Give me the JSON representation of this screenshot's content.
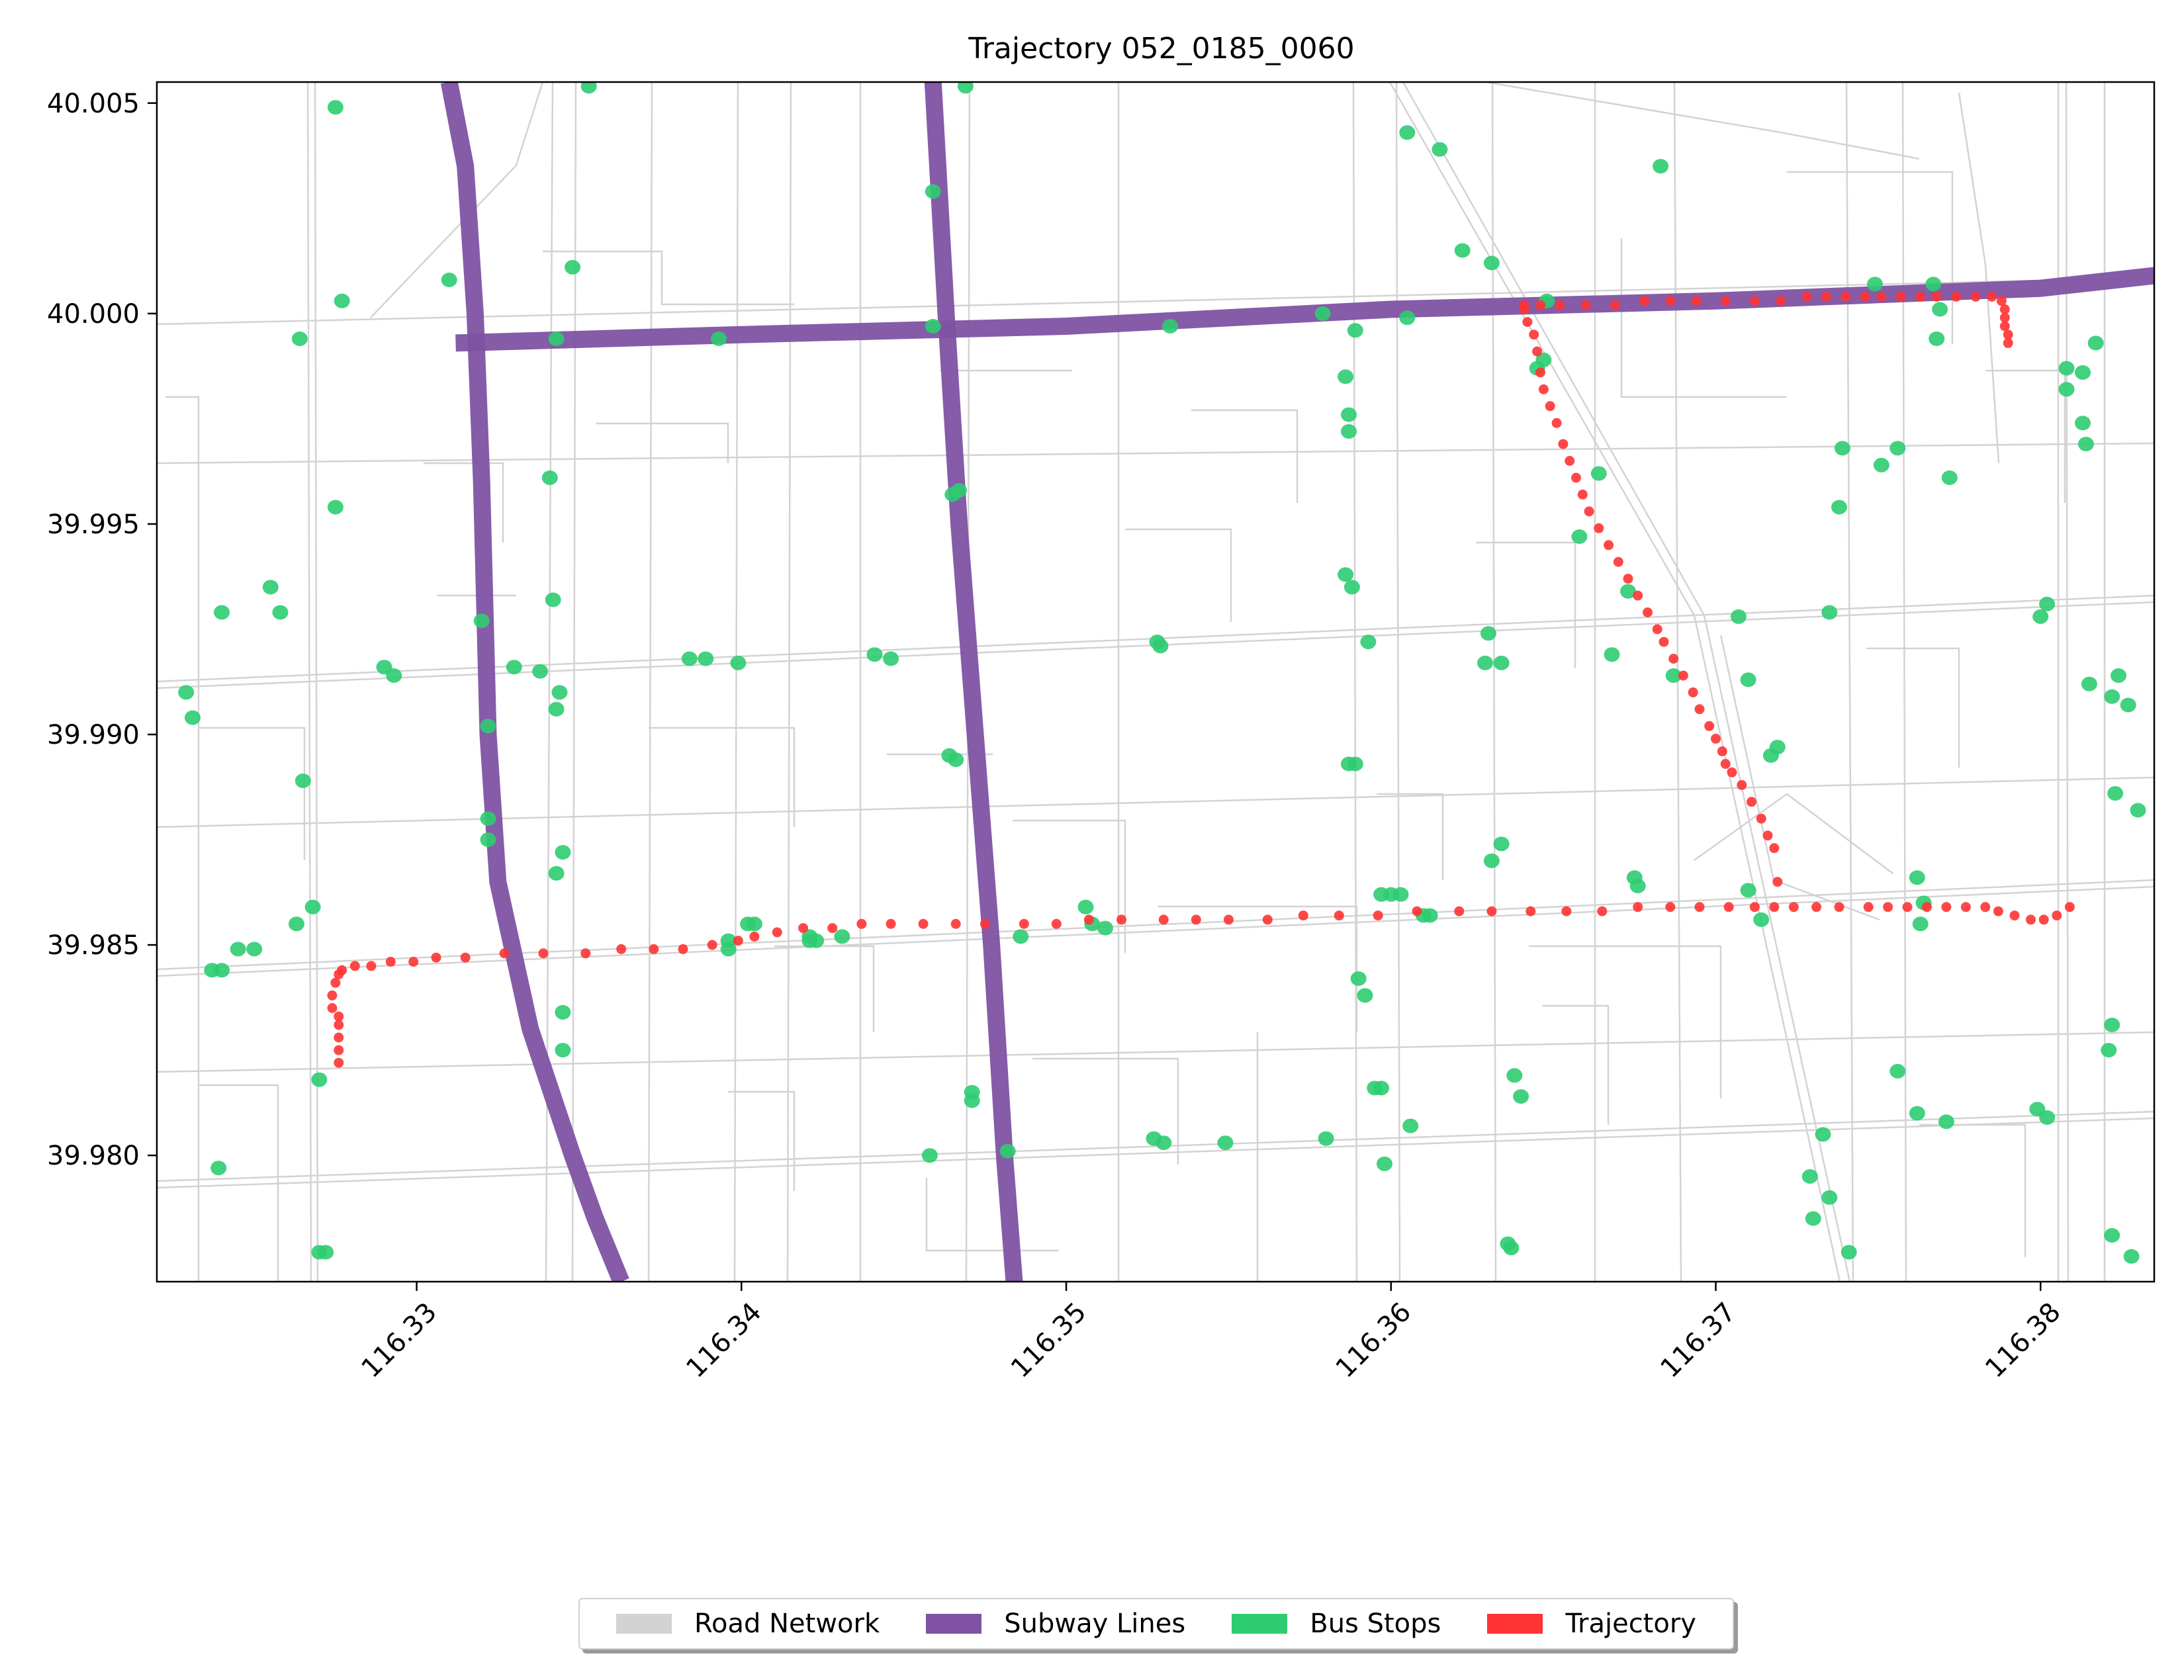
{
  "title": "Trajectory 052_0185_0060",
  "colors": {
    "road": "#d3d3d3",
    "subway": "#7f52a3",
    "bus_stop": "#2ecc71",
    "trajectory": "#ff3333"
  },
  "chart_data": {
    "type": "scatter",
    "title": "Trajectory 052_0185_0060",
    "xlabel": "",
    "ylabel": "",
    "xlim": [
      116.322,
      116.3835
    ],
    "ylim": [
      39.977,
      40.0055
    ],
    "x_ticks": [
      "116.33",
      "116.34",
      "116.35",
      "116.36",
      "116.37",
      "116.38"
    ],
    "x_tick_values": [
      116.33,
      116.34,
      116.35,
      116.36,
      116.37,
      116.38
    ],
    "y_ticks": [
      "39.980",
      "39.985",
      "39.990",
      "39.995",
      "40.000",
      "40.005"
    ],
    "y_tick_values": [
      39.98,
      39.985,
      39.99,
      39.995,
      40.0,
      40.005
    ],
    "legend": [
      {
        "label": "Road Network",
        "color": "#d3d3d3"
      },
      {
        "label": "Subway Lines",
        "color": "#7f52a3"
      },
      {
        "label": "Bus Stops",
        "color": "#2ecc71"
      },
      {
        "label": "Trajectory",
        "color": "#ff3333"
      }
    ],
    "legend_position": "bottom-center",
    "subway_lines": [
      [
        [
          116.331,
          40.0055
        ],
        [
          116.3315,
          40.0035
        ],
        [
          116.3318,
          40.0
        ],
        [
          116.332,
          39.996
        ],
        [
          116.3322,
          39.99
        ],
        [
          116.3325,
          39.9865
        ],
        [
          116.3335,
          39.983
        ],
        [
          116.3348,
          39.98
        ],
        [
          116.3355,
          39.9785
        ],
        [
          116.3363,
          39.977
        ]
      ],
      [
        [
          116.3459,
          40.0055
        ],
        [
          116.3463,
          40.0
        ],
        [
          116.3467,
          39.995
        ],
        [
          116.3472,
          39.99
        ],
        [
          116.3477,
          39.985
        ],
        [
          116.3481,
          39.98
        ],
        [
          116.3484,
          39.977
        ]
      ],
      [
        [
          116.3312,
          39.9993
        ],
        [
          116.34,
          39.9995
        ],
        [
          116.35,
          39.9997
        ],
        [
          116.36,
          40.0001
        ],
        [
          116.37,
          40.0003
        ],
        [
          116.38,
          40.0006
        ],
        [
          116.3835,
          40.0009
        ]
      ]
    ],
    "bus_stops": [
      [
        116.3469,
        40.0054
      ],
      [
        116.3275,
        40.0049
      ],
      [
        116.3353,
        40.0054
      ],
      [
        116.3605,
        40.0043
      ],
      [
        116.3615,
        40.0039
      ],
      [
        116.3683,
        40.0035
      ],
      [
        116.3348,
        40.0011
      ],
      [
        116.331,
        40.0008
      ],
      [
        116.3277,
        40.0003
      ],
      [
        116.3264,
        39.9994
      ],
      [
        116.3393,
        39.9994
      ],
      [
        116.3343,
        39.9994
      ],
      [
        116.3459,
        40.0029
      ],
      [
        116.3459,
        39.9997
      ],
      [
        116.3532,
        39.9997
      ],
      [
        116.3579,
        40.0
      ],
      [
        116.3589,
        39.9996
      ],
      [
        116.3586,
        39.9985
      ],
      [
        116.3587,
        39.9976
      ],
      [
        116.3587,
        39.9972
      ],
      [
        116.3622,
        40.0015
      ],
      [
        116.3631,
        40.0012
      ],
      [
        116.3605,
        39.9999
      ],
      [
        116.3645,
        39.9987
      ],
      [
        116.3647,
        39.9989
      ],
      [
        116.3648,
        40.0003
      ],
      [
        116.3664,
        39.9962
      ],
      [
        116.3658,
        39.9947
      ],
      [
        116.3673,
        39.9934
      ],
      [
        116.3668,
        39.9919
      ],
      [
        116.3687,
        39.9914
      ],
      [
        116.3707,
        39.9928
      ],
      [
        116.371,
        39.9913
      ],
      [
        116.3717,
        39.9895
      ],
      [
        116.371,
        39.9863
      ],
      [
        116.3714,
        39.9856
      ],
      [
        116.3749,
        40.0007
      ],
      [
        116.3767,
        40.0007
      ],
      [
        116.3769,
        40.0001
      ],
      [
        116.3768,
        39.9994
      ],
      [
        116.3808,
        39.9987
      ],
      [
        116.3813,
        39.9986
      ],
      [
        116.3817,
        39.9993
      ],
      [
        116.3808,
        39.9982
      ],
      [
        116.3813,
        39.9974
      ],
      [
        116.3814,
        39.9969
      ],
      [
        116.3772,
        39.9961
      ],
      [
        116.3738,
        39.9954
      ],
      [
        116.3735,
        39.9929
      ],
      [
        116.3719,
        39.9897
      ],
      [
        116.3756,
        39.9968
      ],
      [
        116.3751,
        39.9964
      ],
      [
        116.3739,
        39.9968
      ],
      [
        116.3802,
        39.9931
      ],
      [
        116.38,
        39.9928
      ],
      [
        116.3815,
        39.9912
      ],
      [
        116.3824,
        39.9914
      ],
      [
        116.3822,
        39.9909
      ],
      [
        116.3827,
        39.9907
      ],
      [
        116.3823,
        39.9886
      ],
      [
        116.383,
        39.9882
      ],
      [
        116.3762,
        39.9866
      ],
      [
        116.3764,
        39.986
      ],
      [
        116.3763,
        39.9855
      ],
      [
        116.3756,
        39.982
      ],
      [
        116.3762,
        39.981
      ],
      [
        116.3771,
        39.9808
      ],
      [
        116.3799,
        39.9811
      ],
      [
        116.3802,
        39.9809
      ],
      [
        116.3821,
        39.9825
      ],
      [
        116.3822,
        39.9831
      ],
      [
        116.3733,
        39.9805
      ],
      [
        116.3729,
        39.9795
      ],
      [
        116.3735,
        39.979
      ],
      [
        116.3741,
        39.9777
      ],
      [
        116.373,
        39.9785
      ],
      [
        116.3822,
        39.9781
      ],
      [
        116.3828,
        39.9776
      ],
      [
        116.3231,
        39.9904
      ],
      [
        116.3229,
        39.991
      ],
      [
        116.3265,
        39.9889
      ],
      [
        116.3268,
        39.9859
      ],
      [
        116.3263,
        39.9855
      ],
      [
        116.325,
        39.9849
      ],
      [
        116.3245,
        39.9849
      ],
      [
        116.324,
        39.9844
      ],
      [
        116.3237,
        39.9844
      ],
      [
        116.3255,
        39.9935
      ],
      [
        116.3258,
        39.9929
      ],
      [
        116.324,
        39.9929
      ],
      [
        116.3275,
        39.9954
      ],
      [
        116.329,
        39.9916
      ],
      [
        116.3293,
        39.9914
      ],
      [
        116.332,
        39.9927
      ],
      [
        116.333,
        39.9916
      ],
      [
        116.3338,
        39.9915
      ],
      [
        116.3344,
        39.991
      ],
      [
        116.3343,
        39.9906
      ],
      [
        116.3342,
        39.9932
      ],
      [
        116.3341,
        39.9961
      ],
      [
        116.3322,
        39.9902
      ],
      [
        116.3322,
        39.988
      ],
      [
        116.3322,
        39.9875
      ],
      [
        116.3345,
        39.9872
      ],
      [
        116.3343,
        39.9867
      ],
      [
        116.3345,
        39.9834
      ],
      [
        116.3345,
        39.9825
      ],
      [
        116.327,
        39.9818
      ],
      [
        116.3272,
        39.9777
      ],
      [
        116.327,
        39.9777
      ],
      [
        116.3239,
        39.9797
      ],
      [
        116.3384,
        39.9918
      ],
      [
        116.3389,
        39.9918
      ],
      [
        116.3399,
        39.9917
      ],
      [
        116.3402,
        39.9855
      ],
      [
        116.3404,
        39.9855
      ],
      [
        116.3396,
        39.9851
      ],
      [
        116.3396,
        39.9849
      ],
      [
        116.3421,
        39.9851
      ],
      [
        116.3431,
        39.9852
      ],
      [
        116.3441,
        39.9919
      ],
      [
        116.3446,
        39.9918
      ],
      [
        116.3464,
        39.9895
      ],
      [
        116.3466,
        39.9894
      ],
      [
        116.3467,
        39.9958
      ],
      [
        116.3465,
        39.9957
      ],
      [
        116.3486,
        39.9852
      ],
      [
        116.3506,
        39.9859
      ],
      [
        116.3508,
        39.9855
      ],
      [
        116.3512,
        39.9854
      ],
      [
        116.3528,
        39.9922
      ],
      [
        116.3529,
        39.9921
      ],
      [
        116.3586,
        39.9938
      ],
      [
        116.3588,
        39.9935
      ],
      [
        116.3593,
        39.9922
      ],
      [
        116.3587,
        39.9893
      ],
      [
        116.3589,
        39.9893
      ],
      [
        116.3597,
        39.9862
      ],
      [
        116.36,
        39.9862
      ],
      [
        116.3603,
        39.9862
      ],
      [
        116.361,
        39.9857
      ],
      [
        116.3612,
        39.9857
      ],
      [
        116.3629,
        39.9917
      ],
      [
        116.3634,
        39.9917
      ],
      [
        116.363,
        39.9924
      ],
      [
        116.3631,
        39.987
      ],
      [
        116.3634,
        39.9874
      ],
      [
        116.359,
        39.9842
      ],
      [
        116.3592,
        39.9838
      ],
      [
        116.3595,
        39.9816
      ],
      [
        116.3597,
        39.9816
      ],
      [
        116.3606,
        39.9807
      ],
      [
        116.3598,
        39.9798
      ],
      [
        116.3638,
        39.9819
      ],
      [
        116.364,
        39.9814
      ],
      [
        116.3636,
        39.9779
      ],
      [
        116.3637,
        39.9778
      ],
      [
        116.3471,
        39.9815
      ],
      [
        116.3471,
        39.9813
      ],
      [
        116.3482,
        39.9801
      ],
      [
        116.3458,
        39.98
      ],
      [
        116.3527,
        39.9804
      ],
      [
        116.353,
        39.9803
      ],
      [
        116.3549,
        39.9803
      ],
      [
        116.358,
        39.9804
      ],
      [
        116.3675,
        39.9866
      ],
      [
        116.3676,
        39.9864
      ],
      [
        116.3421,
        39.9852
      ],
      [
        116.3423,
        39.9851
      ]
    ],
    "trajectory": [
      [
        116.3276,
        39.9822
      ],
      [
        116.3276,
        39.9825
      ],
      [
        116.3276,
        39.9828
      ],
      [
        116.3276,
        39.9831
      ],
      [
        116.3276,
        39.9833
      ],
      [
        116.3274,
        39.9835
      ],
      [
        116.3274,
        39.9838
      ],
      [
        116.3275,
        39.9841
      ],
      [
        116.3276,
        39.9843
      ],
      [
        116.3277,
        39.9844
      ],
      [
        116.3281,
        39.9845
      ],
      [
        116.3286,
        39.9845
      ],
      [
        116.3292,
        39.9846
      ],
      [
        116.3299,
        39.9846
      ],
      [
        116.3306,
        39.9847
      ],
      [
        116.3315,
        39.9847
      ],
      [
        116.3327,
        39.9848
      ],
      [
        116.3339,
        39.9848
      ],
      [
        116.3352,
        39.9848
      ],
      [
        116.3363,
        39.9849
      ],
      [
        116.3373,
        39.9849
      ],
      [
        116.3382,
        39.9849
      ],
      [
        116.3391,
        39.985
      ],
      [
        116.3399,
        39.9851
      ],
      [
        116.3404,
        39.9852
      ],
      [
        116.3411,
        39.9853
      ],
      [
        116.3419,
        39.9854
      ],
      [
        116.3428,
        39.9854
      ],
      [
        116.3437,
        39.9855
      ],
      [
        116.3446,
        39.9855
      ],
      [
        116.3456,
        39.9855
      ],
      [
        116.3466,
        39.9855
      ],
      [
        116.3475,
        39.9855
      ],
      [
        116.3487,
        39.9855
      ],
      [
        116.3497,
        39.9855
      ],
      [
        116.3507,
        39.9856
      ],
      [
        116.3517,
        39.9856
      ],
      [
        116.353,
        39.9856
      ],
      [
        116.354,
        39.9856
      ],
      [
        116.355,
        39.9856
      ],
      [
        116.3562,
        39.9856
      ],
      [
        116.3573,
        39.9857
      ],
      [
        116.3584,
        39.9857
      ],
      [
        116.3596,
        39.9857
      ],
      [
        116.3608,
        39.9858
      ],
      [
        116.3621,
        39.9858
      ],
      [
        116.3631,
        39.9858
      ],
      [
        116.3643,
        39.9858
      ],
      [
        116.3654,
        39.9858
      ],
      [
        116.3665,
        39.9858
      ],
      [
        116.3676,
        39.9859
      ],
      [
        116.3686,
        39.9859
      ],
      [
        116.3695,
        39.9859
      ],
      [
        116.3704,
        39.9859
      ],
      [
        116.3712,
        39.9859
      ],
      [
        116.3718,
        39.9859
      ],
      [
        116.3724,
        39.9859
      ],
      [
        116.3731,
        39.9859
      ],
      [
        116.3738,
        39.9859
      ],
      [
        116.3747,
        39.9859
      ],
      [
        116.3753,
        39.9859
      ],
      [
        116.3759,
        39.9859
      ],
      [
        116.3765,
        39.9859
      ],
      [
        116.3771,
        39.9859
      ],
      [
        116.3777,
        39.9859
      ],
      [
        116.3783,
        39.9859
      ],
      [
        116.3787,
        39.9858
      ],
      [
        116.3792,
        39.9857
      ],
      [
        116.3797,
        39.9856
      ],
      [
        116.3801,
        39.9856
      ],
      [
        116.3805,
        39.9857
      ],
      [
        116.3809,
        39.9859
      ],
      [
        116.3719,
        39.9865
      ],
      [
        116.3718,
        39.9873
      ],
      [
        116.3716,
        39.9876
      ],
      [
        116.3714,
        39.988
      ],
      [
        116.3711,
        39.9884
      ],
      [
        116.3708,
        39.9888
      ],
      [
        116.3705,
        39.9891
      ],
      [
        116.3703,
        39.9893
      ],
      [
        116.3702,
        39.9896
      ],
      [
        116.37,
        39.9899
      ],
      [
        116.3698,
        39.9902
      ],
      [
        116.3695,
        39.9906
      ],
      [
        116.3693,
        39.991
      ],
      [
        116.369,
        39.9914
      ],
      [
        116.3687,
        39.9918
      ],
      [
        116.3684,
        39.9922
      ],
      [
        116.3682,
        39.9925
      ],
      [
        116.3679,
        39.9929
      ],
      [
        116.3676,
        39.9933
      ],
      [
        116.3673,
        39.9937
      ],
      [
        116.367,
        39.9941
      ],
      [
        116.3667,
        39.9945
      ],
      [
        116.3664,
        39.9949
      ],
      [
        116.3661,
        39.9953
      ],
      [
        116.3659,
        39.9957
      ],
      [
        116.3657,
        39.9961
      ],
      [
        116.3655,
        39.9965
      ],
      [
        116.3653,
        39.9969
      ],
      [
        116.3651,
        39.9974
      ],
      [
        116.3649,
        39.9978
      ],
      [
        116.3647,
        39.9982
      ],
      [
        116.3646,
        39.9986
      ],
      [
        116.3645,
        39.9991
      ],
      [
        116.3644,
        39.9995
      ],
      [
        116.3642,
        39.9998
      ],
      [
        116.3641,
        40.0001
      ],
      [
        116.3641,
        40.0002
      ],
      [
        116.3646,
        40.0002
      ],
      [
        116.3652,
        40.0002
      ],
      [
        116.366,
        40.0002
      ],
      [
        116.3669,
        40.0002
      ],
      [
        116.3678,
        40.0003
      ],
      [
        116.3686,
        40.0003
      ],
      [
        116.3694,
        40.0003
      ],
      [
        116.3703,
        40.0003
      ],
      [
        116.3712,
        40.0003
      ],
      [
        116.372,
        40.0003
      ],
      [
        116.3728,
        40.0004
      ],
      [
        116.3734,
        40.0004
      ],
      [
        116.374,
        40.0004
      ],
      [
        116.3746,
        40.0004
      ],
      [
        116.3751,
        40.0004
      ],
      [
        116.3757,
        40.0004
      ],
      [
        116.3763,
        40.0004
      ],
      [
        116.3768,
        40.0004
      ],
      [
        116.3774,
        40.0004
      ],
      [
        116.378,
        40.0004
      ],
      [
        116.3785,
        40.0004
      ],
      [
        116.3788,
        40.0003
      ],
      [
        116.3789,
        40.0001
      ],
      [
        116.3789,
        39.9999
      ],
      [
        116.3789,
        39.9997
      ],
      [
        116.379,
        39.9995
      ],
      [
        116.379,
        39.9993
      ]
    ]
  }
}
